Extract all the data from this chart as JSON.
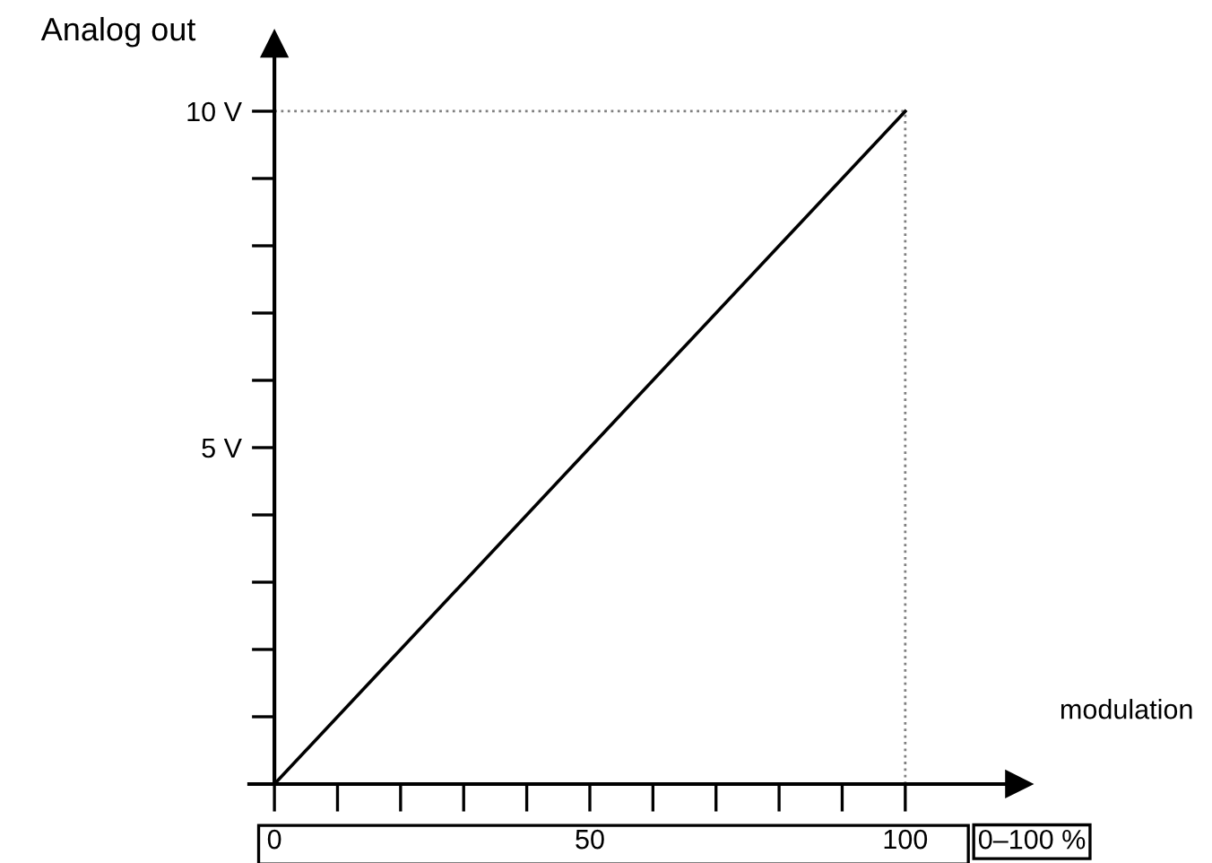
{
  "chart_data": {
    "type": "line",
    "xlabel": "modulation",
    "ylabel": "Analog out",
    "x": [
      0,
      100
    ],
    "series": [
      {
        "color": "#000000",
        "values": [
          0,
          10
        ]
      }
    ],
    "xlim": [
      -4,
      118
    ],
    "ylim": [
      0,
      11
    ],
    "xticks": [
      0,
      {
        "value": 10,
        "label": null
      },
      {
        "value": 20,
        "label": null
      },
      {
        "value": 30,
        "label": null
      },
      {
        "value": 40,
        "label": null
      },
      50,
      {
        "value": 60,
        "label": null
      },
      {
        "value": 70,
        "label": null
      },
      {
        "value": 80,
        "label": null
      },
      {
        "value": 90,
        "label": null
      },
      100
    ],
    "yticks": [
      {
        "value": 1,
        "label": null
      },
      {
        "value": 2,
        "label": null
      },
      {
        "value": 3,
        "label": null
      },
      {
        "value": 4,
        "label": null
      },
      {
        "value": 5,
        "label": "5 V"
      },
      {
        "value": 6,
        "label": null
      },
      {
        "value": 7,
        "label": null
      },
      {
        "value": 8,
        "label": null
      },
      {
        "value": 9,
        "label": null
      },
      {
        "value": 10,
        "label": "10 V"
      }
    ],
    "ref_lines": [
      {
        "axis": "y",
        "value": 10,
        "color": "#808080",
        "line_style": "dotted"
      },
      {
        "axis": "x",
        "value": 100,
        "color": "#808080",
        "line_style": "dotted"
      }
    ],
    "annotations": [
      "0–100 %"
    ],
    "grid": false,
    "legend": false,
    "marker": "none",
    "line_style": "solid"
  }
}
